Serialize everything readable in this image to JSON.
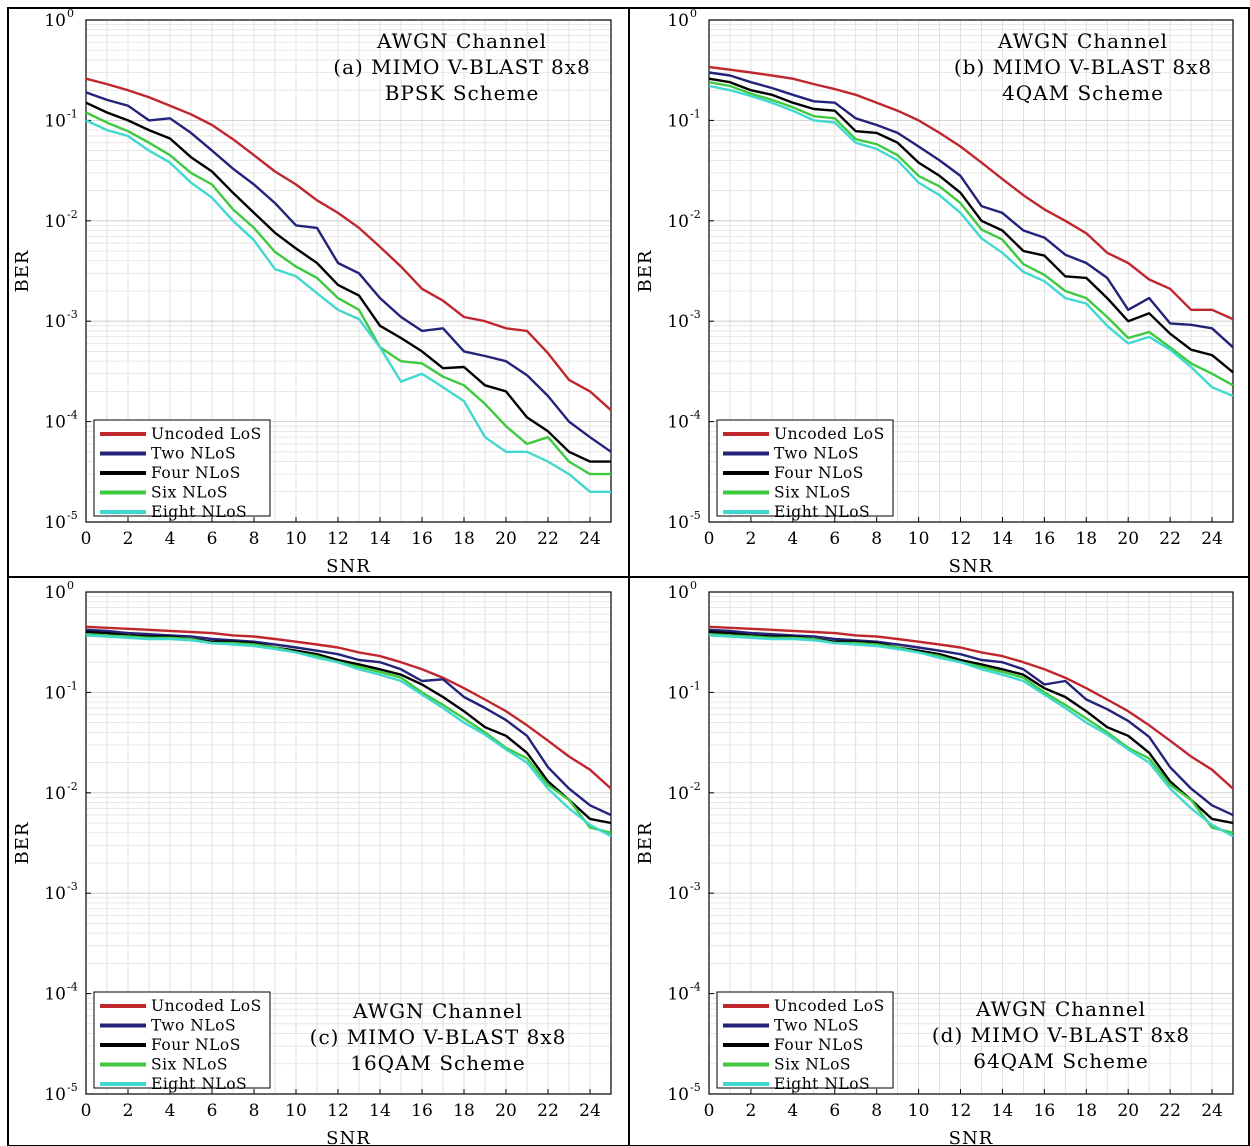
{
  "chart_data": [
    {
      "type": "line",
      "annotation": [
        "AWGN Channel",
        "(a) MIMO V-BLAST 8x8",
        "BPSK Scheme"
      ],
      "xlabel": "SNR",
      "ylabel": "BER",
      "yscale": "log",
      "xlim": [
        0,
        25
      ],
      "ylim": [
        1e-05,
        1
      ],
      "xticks": [
        "0",
        "2",
        "4",
        "6",
        "8",
        "10",
        "12",
        "14",
        "16",
        "18",
        "20",
        "22",
        "24"
      ],
      "yticks": [
        {
          "base": "10",
          "exp": "0"
        },
        {
          "base": "10",
          "exp": "-1"
        },
        {
          "base": "10",
          "exp": "-2"
        },
        {
          "base": "10",
          "exp": "-3"
        },
        {
          "base": "10",
          "exp": "-4"
        },
        {
          "base": "10",
          "exp": "-5"
        }
      ],
      "grid": true,
      "legend_position": "bottom-left",
      "x": [
        0,
        1,
        2,
        3,
        4,
        5,
        6,
        7,
        8,
        9,
        10,
        11,
        12,
        13,
        14,
        15,
        16,
        17,
        18,
        19,
        20,
        21,
        22,
        23,
        24,
        25
      ],
      "series": [
        {
          "name": "Uncoded LoS",
          "color": "#c0272d",
          "values": [
            0.26,
            0.23,
            0.2,
            0.17,
            0.14,
            0.115,
            0.09,
            0.065,
            0.045,
            0.031,
            0.023,
            0.016,
            0.012,
            0.0085,
            0.0055,
            0.0035,
            0.0021,
            0.0016,
            0.0011,
            0.001,
            0.00085,
            0.0008,
            0.00048,
            0.00026,
            0.0002,
            0.00013
          ]
        },
        {
          "name": "Two NLoS",
          "color": "#23237a",
          "values": [
            0.19,
            0.16,
            0.14,
            0.1,
            0.105,
            0.075,
            0.05,
            0.033,
            0.023,
            0.015,
            0.009,
            0.0085,
            0.0038,
            0.003,
            0.0017,
            0.0011,
            0.0008,
            0.00085,
            0.0005,
            0.00045,
            0.0004,
            0.00029,
            0.00018,
            0.0001,
            7e-05,
            5e-05
          ]
        },
        {
          "name": "Four NLoS",
          "color": "#000000",
          "values": [
            0.15,
            0.12,
            0.1,
            0.08,
            0.066,
            0.043,
            0.031,
            0.019,
            0.012,
            0.0076,
            0.0053,
            0.0038,
            0.0023,
            0.0018,
            0.0009,
            0.00068,
            0.0005,
            0.00034,
            0.00035,
            0.00023,
            0.0002,
            0.00011,
            8e-05,
            5e-05,
            4e-05,
            4e-05
          ]
        },
        {
          "name": "Six NLoS",
          "color": "#3fc93f",
          "values": [
            0.12,
            0.095,
            0.078,
            0.06,
            0.045,
            0.03,
            0.023,
            0.013,
            0.0085,
            0.0049,
            0.0035,
            0.0027,
            0.0017,
            0.0013,
            0.00055,
            0.0004,
            0.00038,
            0.00028,
            0.00023,
            0.00015,
            9e-05,
            6e-05,
            7e-05,
            4e-05,
            3e-05,
            3e-05
          ]
        },
        {
          "name": "Eight NLoS",
          "color": "#40d8cf",
          "values": [
            0.1,
            0.08,
            0.07,
            0.05,
            0.038,
            0.024,
            0.017,
            0.01,
            0.0064,
            0.0033,
            0.0028,
            0.0019,
            0.0013,
            0.00105,
            0.00055,
            0.00025,
            0.0003,
            0.00022,
            0.00016,
            7e-05,
            5e-05,
            5e-05,
            4e-05,
            3e-05,
            2e-05,
            2e-05
          ]
        }
      ]
    },
    {
      "type": "line",
      "annotation": [
        "AWGN Channel",
        "(b) MIMO V-BLAST 8x8",
        "4QAM Scheme"
      ],
      "xlabel": "SNR",
      "ylabel": "BER",
      "yscale": "log",
      "xlim": [
        0,
        25
      ],
      "ylim": [
        1e-05,
        1
      ],
      "xticks": [
        "0",
        "2",
        "4",
        "6",
        "8",
        "10",
        "12",
        "14",
        "16",
        "18",
        "20",
        "22",
        "24"
      ],
      "yticks": [
        {
          "base": "10",
          "exp": "0"
        },
        {
          "base": "10",
          "exp": "-1"
        },
        {
          "base": "10",
          "exp": "-2"
        },
        {
          "base": "10",
          "exp": "-3"
        },
        {
          "base": "10",
          "exp": "-4"
        },
        {
          "base": "10",
          "exp": "-5"
        }
      ],
      "grid": true,
      "legend_position": "bottom-left",
      "x": [
        0,
        1,
        2,
        3,
        4,
        5,
        6,
        7,
        8,
        9,
        10,
        11,
        12,
        13,
        14,
        15,
        16,
        17,
        18,
        19,
        20,
        21,
        22,
        23,
        24,
        25
      ],
      "series": [
        {
          "name": "Uncoded LoS",
          "color": "#c0272d",
          "values": [
            0.34,
            0.32,
            0.3,
            0.28,
            0.26,
            0.23,
            0.205,
            0.18,
            0.15,
            0.125,
            0.1,
            0.075,
            0.055,
            0.038,
            0.026,
            0.018,
            0.013,
            0.01,
            0.0075,
            0.0048,
            0.0038,
            0.0026,
            0.0021,
            0.0013,
            0.0013,
            0.00105
          ]
        },
        {
          "name": "Two NLoS",
          "color": "#23237a",
          "values": [
            0.3,
            0.28,
            0.24,
            0.21,
            0.18,
            0.155,
            0.15,
            0.105,
            0.09,
            0.075,
            0.055,
            0.04,
            0.028,
            0.014,
            0.012,
            0.008,
            0.0068,
            0.0046,
            0.0038,
            0.0027,
            0.0013,
            0.0017,
            0.00095,
            0.00092,
            0.00085,
            0.00055
          ]
        },
        {
          "name": "Four NLoS",
          "color": "#000000",
          "values": [
            0.26,
            0.24,
            0.2,
            0.18,
            0.15,
            0.13,
            0.125,
            0.078,
            0.075,
            0.06,
            0.038,
            0.028,
            0.019,
            0.01,
            0.008,
            0.005,
            0.0045,
            0.0028,
            0.0027,
            0.0017,
            0.001,
            0.0012,
            0.00075,
            0.00052,
            0.00046,
            0.00031
          ]
        },
        {
          "name": "Six NLoS",
          "color": "#3fc93f",
          "values": [
            0.24,
            0.22,
            0.185,
            0.16,
            0.135,
            0.11,
            0.105,
            0.065,
            0.058,
            0.045,
            0.028,
            0.022,
            0.015,
            0.0082,
            0.0065,
            0.0037,
            0.0029,
            0.002,
            0.0017,
            0.0011,
            0.00068,
            0.00078,
            0.00055,
            0.00038,
            0.0003,
            0.00023
          ]
        },
        {
          "name": "Eight NLoS",
          "color": "#40d8cf",
          "values": [
            0.22,
            0.2,
            0.175,
            0.15,
            0.125,
            0.1,
            0.095,
            0.06,
            0.052,
            0.04,
            0.024,
            0.018,
            0.012,
            0.0067,
            0.0048,
            0.0031,
            0.0025,
            0.0017,
            0.0015,
            0.0009,
            0.0006,
            0.0007,
            0.00052,
            0.00035,
            0.00022,
            0.00018
          ]
        }
      ]
    },
    {
      "type": "line",
      "annotation": [
        "AWGN Channel",
        "(c) MIMO V-BLAST 8x8",
        "16QAM Scheme"
      ],
      "xlabel": "SNR",
      "ylabel": "BER",
      "yscale": "log",
      "xlim": [
        0,
        25
      ],
      "ylim": [
        1e-05,
        1
      ],
      "xticks": [
        "0",
        "2",
        "4",
        "6",
        "8",
        "10",
        "12",
        "14",
        "16",
        "18",
        "20",
        "22",
        "24"
      ],
      "yticks": [
        {
          "base": "10",
          "exp": "0"
        },
        {
          "base": "10",
          "exp": "-1"
        },
        {
          "base": "10",
          "exp": "-2"
        },
        {
          "base": "10",
          "exp": "-3"
        },
        {
          "base": "10",
          "exp": "-4"
        },
        {
          "base": "10",
          "exp": "-5"
        }
      ],
      "grid": true,
      "legend_position": "bottom-left",
      "x": [
        0,
        1,
        2,
        3,
        4,
        5,
        6,
        7,
        8,
        9,
        10,
        11,
        12,
        13,
        14,
        15,
        16,
        17,
        18,
        19,
        20,
        21,
        22,
        23,
        24,
        25
      ],
      "series": [
        {
          "name": "Uncoded LoS",
          "color": "#c0272d",
          "values": [
            0.45,
            0.44,
            0.43,
            0.42,
            0.41,
            0.4,
            0.39,
            0.37,
            0.36,
            0.34,
            0.32,
            0.3,
            0.28,
            0.25,
            0.23,
            0.2,
            0.17,
            0.14,
            0.11,
            0.085,
            0.065,
            0.047,
            0.033,
            0.023,
            0.017,
            0.011
          ]
        },
        {
          "name": "Two NLoS",
          "color": "#23237a",
          "values": [
            0.42,
            0.41,
            0.39,
            0.38,
            0.37,
            0.36,
            0.34,
            0.33,
            0.32,
            0.3,
            0.28,
            0.26,
            0.24,
            0.21,
            0.2,
            0.17,
            0.13,
            0.135,
            0.09,
            0.07,
            0.053,
            0.037,
            0.018,
            0.011,
            0.0075,
            0.006
          ]
        },
        {
          "name": "Four NLoS",
          "color": "#000000",
          "values": [
            0.4,
            0.39,
            0.37,
            0.36,
            0.36,
            0.34,
            0.32,
            0.32,
            0.31,
            0.28,
            0.26,
            0.24,
            0.21,
            0.19,
            0.17,
            0.15,
            0.12,
            0.09,
            0.065,
            0.045,
            0.037,
            0.025,
            0.013,
            0.0085,
            0.0055,
            0.005
          ]
        },
        {
          "name": "Six NLoS",
          "color": "#3fc93f",
          "values": [
            0.38,
            0.37,
            0.36,
            0.35,
            0.35,
            0.34,
            0.31,
            0.31,
            0.3,
            0.28,
            0.25,
            0.23,
            0.2,
            0.18,
            0.16,
            0.14,
            0.1,
            0.075,
            0.055,
            0.04,
            0.028,
            0.022,
            0.012,
            0.0085,
            0.0045,
            0.004
          ]
        },
        {
          "name": "Eight NLoS",
          "color": "#40d8cf",
          "values": [
            0.37,
            0.36,
            0.35,
            0.34,
            0.34,
            0.33,
            0.31,
            0.3,
            0.29,
            0.27,
            0.25,
            0.22,
            0.2,
            0.17,
            0.15,
            0.13,
            0.095,
            0.07,
            0.05,
            0.038,
            0.027,
            0.02,
            0.011,
            0.007,
            0.0048,
            0.0037
          ]
        }
      ]
    },
    {
      "type": "line",
      "annotation": [
        "AWGN Channel",
        "(d) MIMO V-BLAST 8x8",
        "64QAM Scheme"
      ],
      "xlabel": "SNR",
      "ylabel": "BER",
      "yscale": "log",
      "xlim": [
        0,
        25
      ],
      "ylim": [
        1e-05,
        1
      ],
      "xticks": [
        "0",
        "2",
        "4",
        "6",
        "8",
        "10",
        "12",
        "14",
        "16",
        "18",
        "20",
        "22",
        "24"
      ],
      "yticks": [
        {
          "base": "10",
          "exp": "0"
        },
        {
          "base": "10",
          "exp": "-1"
        },
        {
          "base": "10",
          "exp": "-2"
        },
        {
          "base": "10",
          "exp": "-3"
        },
        {
          "base": "10",
          "exp": "-4"
        },
        {
          "base": "10",
          "exp": "-5"
        }
      ],
      "grid": true,
      "legend_position": "bottom-left",
      "x": [
        0,
        1,
        2,
        3,
        4,
        5,
        6,
        7,
        8,
        9,
        10,
        11,
        12,
        13,
        14,
        15,
        16,
        17,
        18,
        19,
        20,
        21,
        22,
        23,
        24,
        25
      ],
      "series": [
        {
          "name": "Uncoded LoS",
          "color": "#c0272d",
          "values": [
            0.45,
            0.44,
            0.43,
            0.42,
            0.41,
            0.4,
            0.39,
            0.37,
            0.36,
            0.34,
            0.32,
            0.3,
            0.28,
            0.25,
            0.23,
            0.2,
            0.17,
            0.14,
            0.11,
            0.085,
            0.065,
            0.047,
            0.033,
            0.023,
            0.017,
            0.011
          ]
        },
        {
          "name": "Two NLoS",
          "color": "#23237a",
          "values": [
            0.42,
            0.41,
            0.39,
            0.38,
            0.37,
            0.36,
            0.34,
            0.33,
            0.32,
            0.3,
            0.28,
            0.26,
            0.24,
            0.21,
            0.2,
            0.17,
            0.12,
            0.13,
            0.085,
            0.068,
            0.052,
            0.036,
            0.018,
            0.011,
            0.0075,
            0.006
          ]
        },
        {
          "name": "Four NLoS",
          "color": "#000000",
          "values": [
            0.4,
            0.39,
            0.37,
            0.36,
            0.36,
            0.34,
            0.32,
            0.32,
            0.31,
            0.28,
            0.26,
            0.24,
            0.21,
            0.19,
            0.17,
            0.15,
            0.11,
            0.09,
            0.065,
            0.045,
            0.037,
            0.025,
            0.013,
            0.0085,
            0.0055,
            0.005
          ]
        },
        {
          "name": "Six NLoS",
          "color": "#3fc93f",
          "values": [
            0.38,
            0.37,
            0.36,
            0.35,
            0.35,
            0.34,
            0.31,
            0.31,
            0.3,
            0.28,
            0.25,
            0.23,
            0.2,
            0.18,
            0.16,
            0.14,
            0.1,
            0.075,
            0.055,
            0.04,
            0.028,
            0.022,
            0.012,
            0.0085,
            0.0045,
            0.004
          ]
        },
        {
          "name": "Eight NLoS",
          "color": "#40d8cf",
          "values": [
            0.37,
            0.36,
            0.35,
            0.34,
            0.34,
            0.33,
            0.31,
            0.3,
            0.29,
            0.27,
            0.25,
            0.22,
            0.2,
            0.17,
            0.15,
            0.13,
            0.095,
            0.07,
            0.05,
            0.038,
            0.027,
            0.02,
            0.011,
            0.007,
            0.0048,
            0.0037
          ]
        }
      ]
    }
  ]
}
